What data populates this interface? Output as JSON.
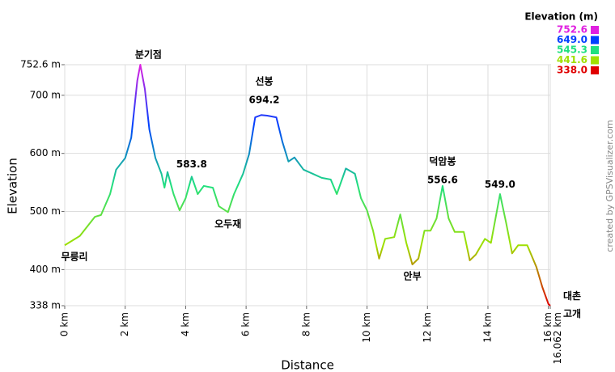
{
  "chart_data": {
    "type": "line",
    "x_label": "Distance",
    "y_label": "Elevation",
    "credit": "created by GPSVisualizer.com",
    "xlim": [
      0,
      16.062
    ],
    "ylim": [
      338,
      752.6
    ],
    "grid": true,
    "xticks": [
      {
        "value": 0,
        "label": "0 km"
      },
      {
        "value": 2,
        "label": "2 km"
      },
      {
        "value": 4,
        "label": "4 km"
      },
      {
        "value": 6,
        "label": "6 km"
      },
      {
        "value": 8,
        "label": "8 km"
      },
      {
        "value": 10,
        "label": "10 km"
      },
      {
        "value": 12,
        "label": "12 km"
      },
      {
        "value": 14,
        "label": "14 km"
      },
      {
        "value": 16,
        "label": "16 km"
      },
      {
        "value": 16.062,
        "label": "16.062 km"
      }
    ],
    "yticks": [
      {
        "value": 338,
        "label": "338 m"
      },
      {
        "value": 400,
        "label": "400 m"
      },
      {
        "value": 500,
        "label": "500 m"
      },
      {
        "value": 600,
        "label": "600 m"
      },
      {
        "value": 700,
        "label": "700 m"
      },
      {
        "value": 752.6,
        "label": "752.6 m"
      }
    ],
    "color_scale": {
      "title": "Elevation (m)",
      "stops": [
        {
          "value": 752.6,
          "color": "#e020e0"
        },
        {
          "value": 649,
          "label": "649.0",
          "color": "#0040ff"
        },
        {
          "value": 545.3,
          "color": "#20e080"
        },
        {
          "value": 441.6,
          "color": "#a0e000"
        },
        {
          "value": 338,
          "label": "338.0",
          "color": "#e00000"
        }
      ]
    },
    "x": [
      0,
      0.5,
      1.0,
      1.2,
      1.5,
      1.7,
      2.0,
      2.2,
      2.4,
      2.5,
      2.65,
      2.8,
      3.0,
      3.2,
      3.3,
      3.4,
      3.6,
      3.8,
      4.0,
      4.2,
      4.4,
      4.6,
      4.9,
      5.1,
      5.4,
      5.6,
      5.9,
      6.1,
      6.3,
      6.5,
      6.7,
      7.0,
      7.2,
      7.4,
      7.6,
      7.9,
      8.2,
      8.5,
      8.8,
      9.0,
      9.3,
      9.6,
      9.8,
      10.0,
      10.2,
      10.4,
      10.6,
      10.9,
      11.1,
      11.3,
      11.5,
      11.7,
      11.9,
      12.1,
      12.3,
      12.5,
      12.7,
      12.9,
      13.2,
      13.4,
      13.6,
      13.9,
      14.1,
      14.4,
      14.6,
      14.8,
      15.0,
      15.3,
      15.6,
      15.8,
      16.0,
      16.062
    ],
    "values": [
      442,
      458,
      491,
      494,
      530,
      572,
      592,
      627,
      725,
      752.6,
      711,
      641,
      592,
      565,
      541,
      568,
      530,
      502,
      523,
      560,
      530,
      544,
      541,
      509,
      499,
      530,
      565,
      599,
      662,
      666,
      665,
      662,
      620,
      586,
      593,
      572,
      565,
      558,
      555,
      530,
      574,
      565,
      523,
      502,
      467,
      419,
      453,
      456,
      495,
      446,
      409,
      419,
      467,
      467,
      488,
      544,
      488,
      465,
      465,
      416,
      426,
      453,
      446,
      530,
      481,
      428,
      442,
      442,
      405,
      370,
      341,
      338
    ],
    "annotations": [
      {
        "x": 2.5,
        "value": 752.6,
        "label": "분기점",
        "place": "above"
      },
      {
        "x": 6.6,
        "value": 694.2,
        "label": "선봉",
        "value_label": "694.2",
        "place": "above"
      },
      {
        "x": 4.2,
        "value": 583.8,
        "value_label": "583.8",
        "place": "above"
      },
      {
        "x": 5.4,
        "value": 499,
        "label": "오두재",
        "place": "below"
      },
      {
        "x": 0,
        "value": 442,
        "label": "무릉리",
        "place": "below"
      },
      {
        "x": 11.5,
        "value": 409,
        "label": "안부",
        "place": "below"
      },
      {
        "x": 12.5,
        "value": 556.6,
        "label": "덕암봉",
        "value_label": "556.6",
        "place": "above"
      },
      {
        "x": 14.4,
        "value": 549,
        "value_label": "549.0",
        "place": "above"
      },
      {
        "x": 16.062,
        "value": 338,
        "label": "대촌 고개",
        "place": "right"
      }
    ]
  }
}
